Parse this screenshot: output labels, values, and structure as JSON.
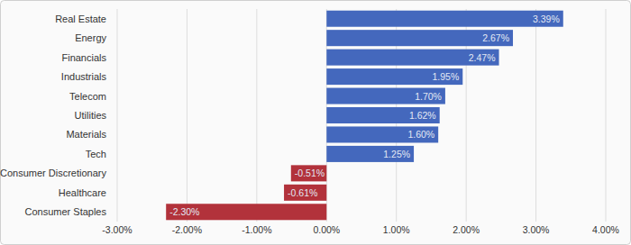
{
  "chart_data": {
    "type": "bar",
    "orientation": "horizontal",
    "categories": [
      "Real Estate",
      "Energy",
      "Financials",
      "Industrials",
      "Telecom",
      "Utilities",
      "Materials",
      "Tech",
      "Consumer Discretionary",
      "Healthcare",
      "Consumer Staples"
    ],
    "values": [
      3.39,
      2.67,
      2.47,
      1.95,
      1.7,
      1.62,
      1.6,
      1.25,
      -0.51,
      -0.61,
      -2.3
    ],
    "value_labels": [
      "3.39%",
      "2.67%",
      "2.47%",
      "1.95%",
      "1.70%",
      "1.62%",
      "1.60%",
      "1.25%",
      "-0.51%",
      "-0.61%",
      "-2.30%"
    ],
    "colors": [
      "#4468bd",
      "#4468bd",
      "#4468bd",
      "#4468bd",
      "#4468bd",
      "#4468bd",
      "#4468bd",
      "#4468bd",
      "#b2323b",
      "#b2323b",
      "#b2323b"
    ],
    "xlim": [
      -3,
      4
    ],
    "xticks": [
      {
        "value": -3,
        "label": "-3.00%"
      },
      {
        "value": -2,
        "label": "-2.00%"
      },
      {
        "value": -1,
        "label": "-1.00%"
      },
      {
        "value": 0,
        "label": "0.00%"
      },
      {
        "value": 1,
        "label": "1.00%"
      },
      {
        "value": 2,
        "label": "2.00%"
      },
      {
        "value": 3,
        "label": "3.00%"
      },
      {
        "value": 4,
        "label": "4.00%"
      }
    ],
    "grid": true,
    "data_labels": true
  }
}
